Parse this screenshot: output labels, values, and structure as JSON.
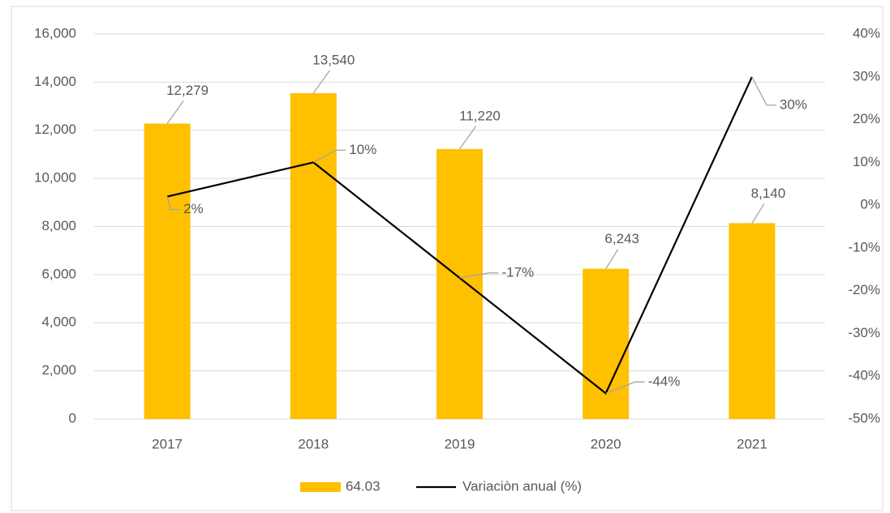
{
  "chart_data": {
    "type": "bar",
    "categories": [
      "2017",
      "2018",
      "2019",
      "2020",
      "2021"
    ],
    "series": [
      {
        "name": "64.03",
        "color": "#ffc000",
        "values": [
          12279,
          13540,
          11220,
          6243,
          8140
        ],
        "value_labels": [
          "12,279",
          "13,540",
          "11,220",
          "6,243",
          "8,140"
        ]
      },
      {
        "name": "Variaciòn anual (%)",
        "type": "line",
        "axis": "y2",
        "color": "#000000",
        "values": [
          2,
          10,
          -17,
          -44,
          30
        ],
        "value_labels": [
          "2%",
          "10%",
          "-17%",
          "-44%",
          "30%"
        ]
      }
    ],
    "ylim": [
      0,
      16000
    ],
    "yticks": [
      0,
      {
        "value": 2000,
        "label": "2,000"
      },
      {
        "value": 4000,
        "label": "4,000"
      },
      {
        "value": 6000,
        "label": "6,000"
      },
      {
        "value": 8000,
        "label": "8,000"
      },
      {
        "value": 10000,
        "label": "10,000"
      },
      {
        "value": 12000,
        "label": "12,000"
      },
      {
        "value": 14000,
        "label": "14,000"
      },
      {
        "value": 16000,
        "label": "16,000"
      }
    ],
    "y2lim": [
      -50,
      40
    ],
    "y2ticks": [
      {
        "value": -50,
        "label": "-50%"
      },
      {
        "value": -40,
        "label": "-40%"
      },
      {
        "value": -30,
        "label": "-30%"
      },
      {
        "value": -20,
        "label": "-20%"
      },
      {
        "value": -10,
        "label": "-10%"
      },
      {
        "value": 0,
        "label": "0%"
      },
      {
        "value": 10,
        "label": "10%"
      },
      {
        "value": 20,
        "label": "20%"
      },
      {
        "value": 30,
        "label": "30%"
      },
      {
        "value": 40,
        "label": "40%"
      }
    ],
    "grid": true,
    "legend": "bottom"
  }
}
